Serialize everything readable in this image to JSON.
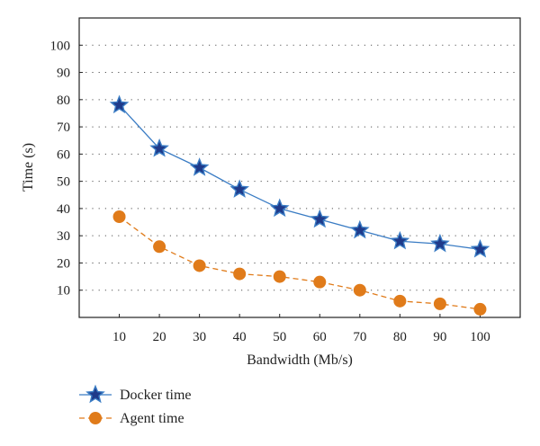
{
  "chart_data": {
    "type": "line",
    "title": "",
    "xlabel": "Bandwidth (Mb/s)",
    "ylabel": "Time (s)",
    "x": [
      10,
      20,
      30,
      40,
      50,
      60,
      70,
      80,
      90,
      100
    ],
    "x_ticks": [
      "10",
      "20",
      "30",
      "40",
      "50",
      "60",
      "70",
      "80",
      "90",
      "100"
    ],
    "y_ticks": [
      "10",
      "20",
      "30",
      "40",
      "50",
      "60",
      "70",
      "80",
      "90",
      "100"
    ],
    "xlim": [
      0,
      110
    ],
    "ylim": [
      0,
      110
    ],
    "grid": "horizontal dotted",
    "legend_position": "bottom-left, outside plot",
    "series": [
      {
        "name": "Docker time",
        "values": [
          78,
          62,
          55,
          47,
          40,
          36,
          32,
          28,
          27,
          25
        ],
        "line_color": "#3a7cc4",
        "marker": "star",
        "marker_fill": "#1f3a8a",
        "line_style": "solid"
      },
      {
        "name": "Agent time",
        "values": [
          37,
          26,
          19,
          16,
          15,
          13,
          10,
          6,
          5,
          3
        ],
        "line_color": "#e07b1a",
        "marker": "circle",
        "marker_fill": "#e07b1a",
        "line_style": "dashed"
      }
    ]
  }
}
